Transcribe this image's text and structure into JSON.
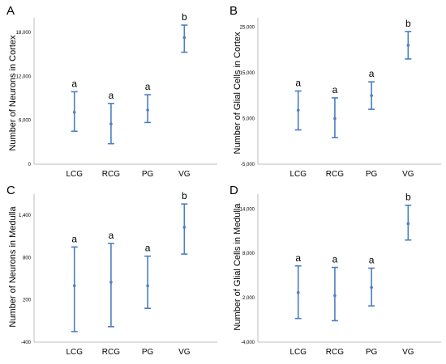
{
  "chart_data": [
    {
      "type": "scatter",
      "panel": "A",
      "ylabel": "Number of Neurons in Cortex",
      "yticks": [
        "0",
        "6,000",
        "12,000",
        "18,000"
      ],
      "ylim": [
        0,
        20000
      ],
      "categories": [
        "LCG",
        "RCG",
        "PG",
        "VG"
      ],
      "means": [
        7100,
        5500,
        7400,
        17300
      ],
      "lower": [
        4500,
        2800,
        5700,
        15300
      ],
      "upper": [
        9900,
        8300,
        9500,
        19000
      ],
      "sig_labels": [
        "a",
        "a",
        "a",
        "b"
      ]
    },
    {
      "type": "scatter",
      "panel": "B",
      "ylabel": "Number of Glial Cells in Cortex",
      "yticks": [
        "-5,000",
        "5,000",
        "15,000",
        "25,000"
      ],
      "ylim": [
        -5000,
        27000
      ],
      "categories": [
        "LCG",
        "RCG",
        "PG",
        "VG"
      ],
      "means": [
        6800,
        5000,
        10000,
        21000
      ],
      "lower": [
        2500,
        800,
        7000,
        18000
      ],
      "upper": [
        11000,
        9500,
        13000,
        24000
      ],
      "sig_labels": [
        "a",
        "a",
        "a",
        "b"
      ]
    },
    {
      "type": "scatter",
      "panel": "C",
      "ylabel": "Number of Neurons in Medulla",
      "yticks": [
        "-400",
        "200",
        "800",
        "1,400"
      ],
      "ylim": [
        -400,
        1700
      ],
      "categories": [
        "LCG",
        "RCG",
        "PG",
        "VG"
      ],
      "means": [
        400,
        450,
        400,
        1230
      ],
      "lower": [
        -250,
        -180,
        80,
        850
      ],
      "upper": [
        950,
        1000,
        820,
        1560
      ],
      "sig_labels": [
        "a",
        "a",
        "a",
        "b"
      ]
    },
    {
      "type": "scatter",
      "panel": "D",
      "ylabel": "Number of Glial Cells in Medulla",
      "yticks": [
        "-4,000",
        "2,000",
        "8,000",
        "14,000"
      ],
      "ylim": [
        -4000,
        16000
      ],
      "categories": [
        "LCG",
        "RCG",
        "PG",
        "VG"
      ],
      "means": [
        2700,
        2300,
        3400,
        12000
      ],
      "lower": [
        -800,
        -1100,
        900,
        9800
      ],
      "upper": [
        6300,
        6100,
        6000,
        14500
      ],
      "sig_labels": [
        "a",
        "a",
        "a",
        "b"
      ]
    }
  ]
}
